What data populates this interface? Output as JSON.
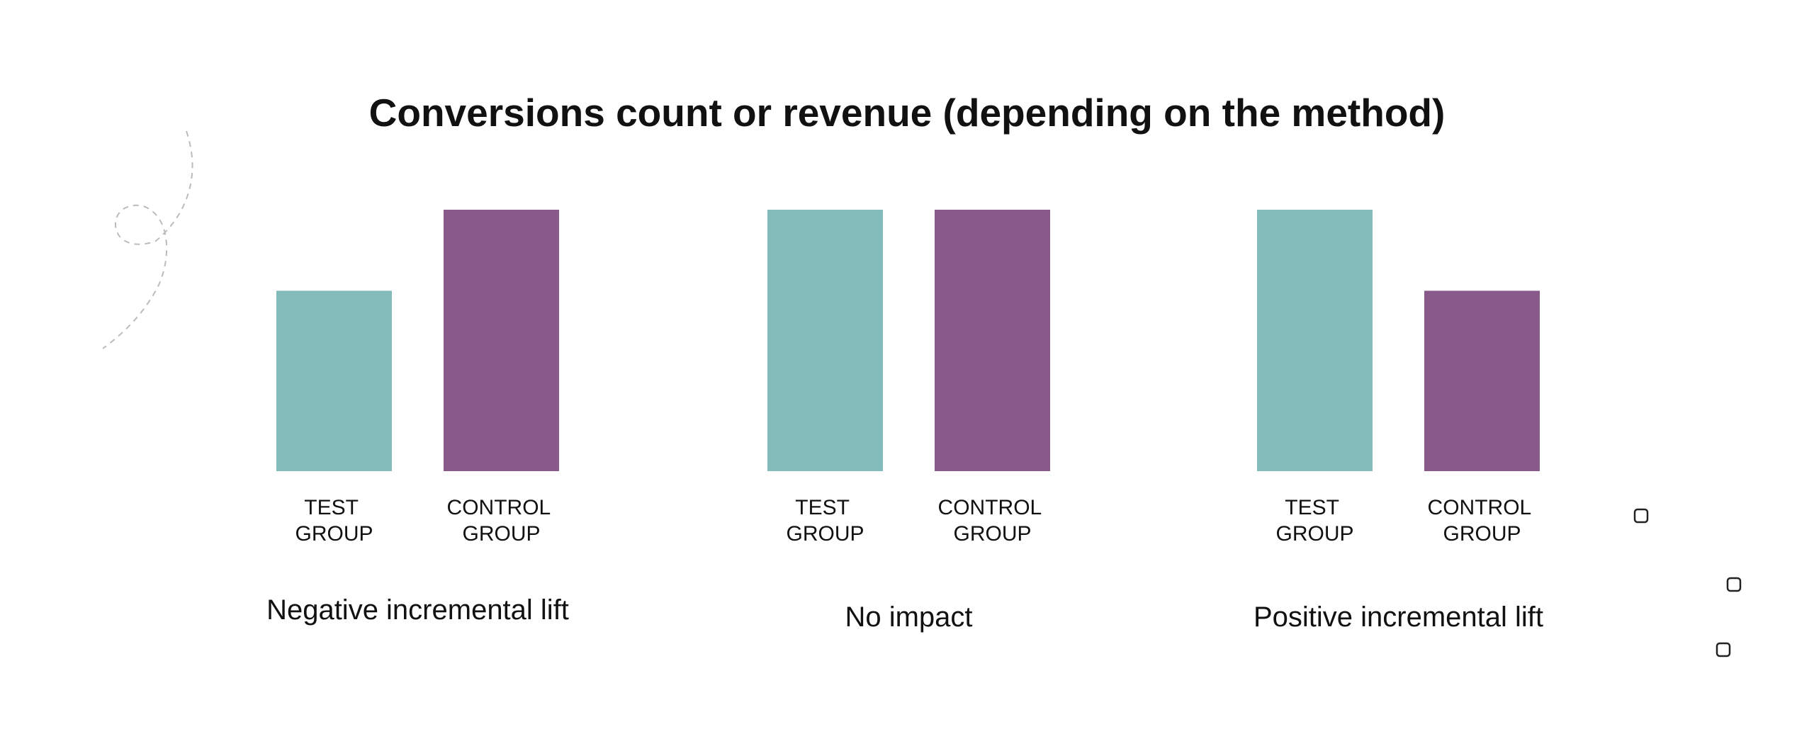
{
  "chart_data": {
    "type": "bar",
    "title": "Conversions count or revenue (depending on the method)",
    "ylim": [
      0,
      100
    ],
    "categories": [
      [
        "TEST",
        "GROUP"
      ],
      [
        "CONTROL",
        "GROUP"
      ]
    ],
    "panels": [
      {
        "caption": "Negative incremental lift",
        "values": [
          69,
          100
        ]
      },
      {
        "caption": "No impact",
        "values": [
          100,
          100
        ]
      },
      {
        "caption": "Positive incremental lift",
        "values": [
          100,
          69
        ]
      }
    ],
    "colors": {
      "test": "#82BBBA",
      "control": "#875A89"
    }
  }
}
